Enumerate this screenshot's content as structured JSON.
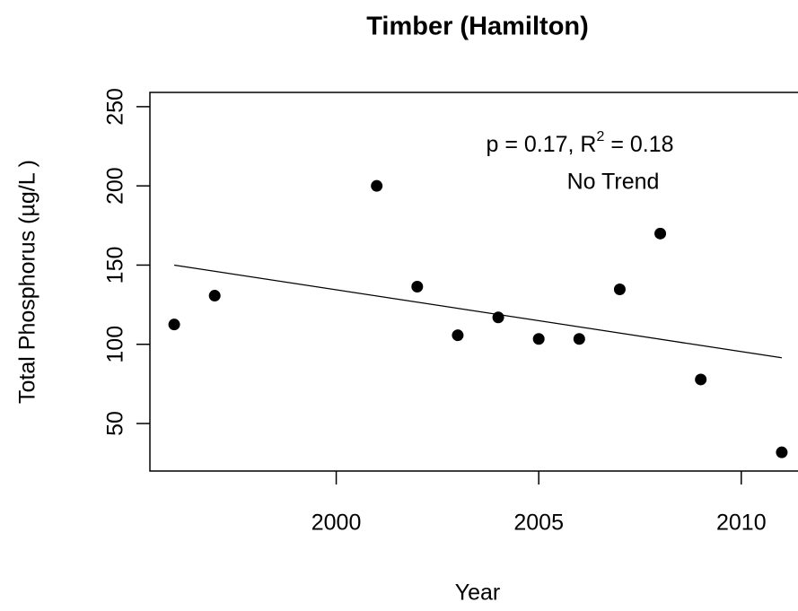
{
  "chart_data": {
    "type": "scatter",
    "title": "Timber (Hamilton)",
    "x_label": "Year",
    "y_label": "Total Phosphorus (µg/L )",
    "x": [
      1996,
      1997,
      2001,
      2002,
      2003,
      2004,
      2005,
      2006,
      2007,
      2008,
      2009,
      2011
    ],
    "series": [
      {
        "color": "#000000",
        "values": [
          112.5,
          130.7,
          200,
          136.4,
          105.7,
          117,
          103.4,
          103.4,
          134.7,
          169.9,
          77.8,
          31.8
        ]
      }
    ],
    "trend": {
      "x": [
        1996,
        2011
      ],
      "values": [
        150,
        91.5
      ],
      "color": "#000000"
    },
    "annotation": {
      "stat_before": "p = 0.17, R",
      "stat_sup": "2",
      "stat_after": " = 0.18",
      "verdict": "No Trend"
    },
    "xlim": [
      1995.4,
      2011.6
    ],
    "xticks": [
      2000,
      2005,
      2010
    ],
    "ylim": [
      20,
      259
    ],
    "yticks": [
      50,
      100,
      150,
      200,
      250
    ],
    "grid": false
  }
}
